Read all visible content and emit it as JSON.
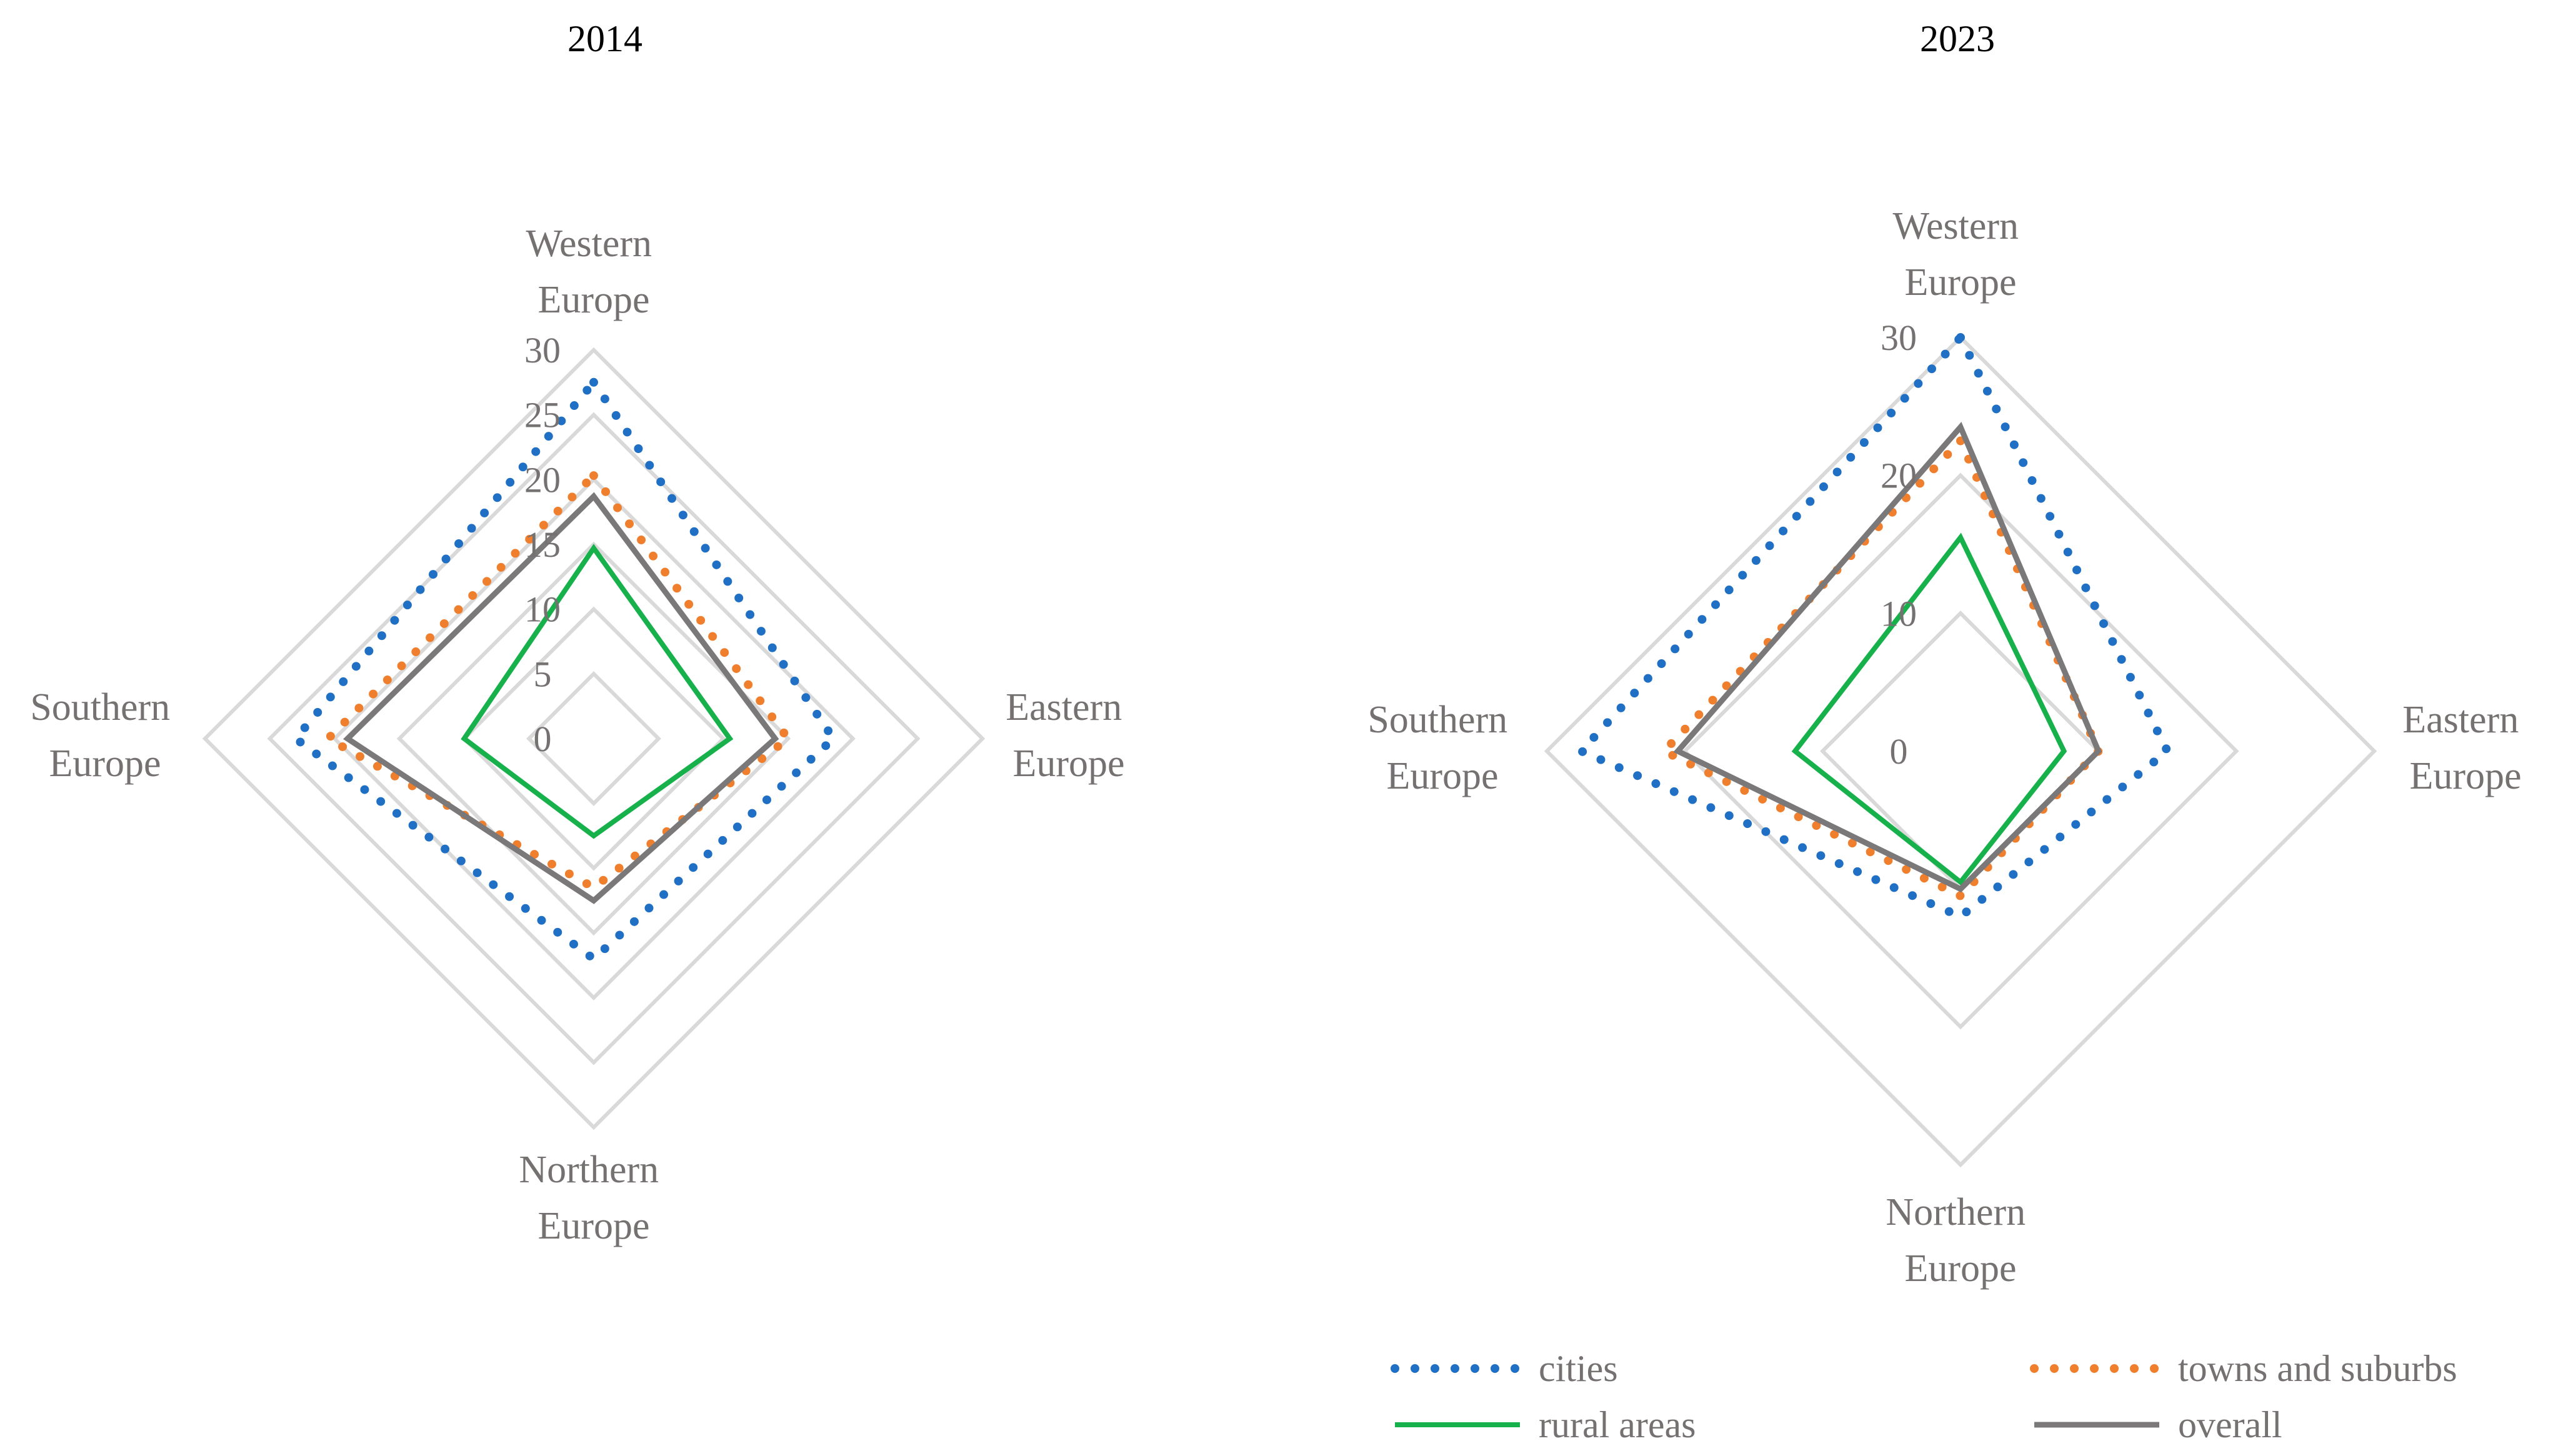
{
  "chart_data": [
    {
      "type": "radar",
      "title": "2014",
      "axes": [
        {
          "label_lines": [
            "Western",
            "Europe"
          ]
        },
        {
          "label_lines": [
            "Eastern",
            "Europe"
          ]
        },
        {
          "label_lines": [
            "Northern",
            "Europe"
          ]
        },
        {
          "label_lines": [
            "Southern",
            "Europe"
          ]
        }
      ],
      "range": [
        0,
        30
      ],
      "ticks": [
        0,
        5,
        10,
        15,
        20,
        25,
        30
      ],
      "tick_labels": [
        "0",
        "5",
        "10",
        "15",
        "20",
        "25",
        "30"
      ],
      "rings": [
        5,
        10,
        15,
        20,
        25,
        30
      ],
      "series": [
        {
          "name": "cities",
          "values": [
            27.5,
            18.5,
            17,
            23
          ]
        },
        {
          "name": "towns and suburbs",
          "values": [
            20.3,
            15,
            11.5,
            20.5
          ]
        },
        {
          "name": "rural areas",
          "values": [
            14.7,
            10.5,
            7.5,
            10
          ]
        },
        {
          "name": "overall",
          "values": [
            18.7,
            14,
            12.5,
            19
          ]
        }
      ]
    },
    {
      "type": "radar",
      "title": "2023",
      "axes": [
        {
          "label_lines": [
            "Western",
            "Europe"
          ]
        },
        {
          "label_lines": [
            "Eastern",
            "Europe"
          ]
        },
        {
          "label_lines": [
            "Northern",
            "Europe"
          ]
        },
        {
          "label_lines": [
            "Southern",
            "Europe"
          ]
        }
      ],
      "range": [
        0,
        30
      ],
      "ticks": [
        0,
        10,
        20,
        30
      ],
      "tick_labels": [
        "0",
        "10",
        "20",
        "30"
      ],
      "rings": [
        10,
        20,
        30
      ],
      "series": [
        {
          "name": "cities",
          "values": [
            30,
            15,
            12,
            27.5
          ]
        },
        {
          "name": "towns and suburbs",
          "values": [
            22.5,
            10,
            10.5,
            21.5
          ]
        },
        {
          "name": "rural areas",
          "values": [
            15.5,
            7.5,
            9.5,
            12
          ]
        },
        {
          "name": "overall",
          "values": [
            23.5,
            10,
            10,
            20.5
          ]
        }
      ]
    }
  ],
  "legend": [
    {
      "name": "cities",
      "label": "cities"
    },
    {
      "name": "towns and suburbs",
      "label": "towns and suburbs"
    },
    {
      "name": "rural areas",
      "label": "rural areas"
    },
    {
      "name": "overall",
      "label": "overall"
    }
  ],
  "colors": {
    "cities": "#1f6fc4",
    "towns and suburbs": "#f07f2d",
    "rural areas": "#16b14b",
    "overall": "#7a7878",
    "grid": "#d9d9d9",
    "label": "#767171"
  }
}
